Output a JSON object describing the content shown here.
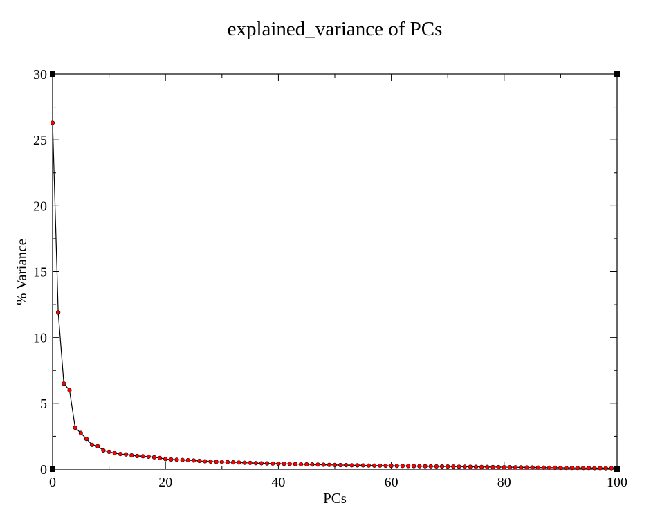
{
  "chart_data": {
    "type": "line",
    "title": "explained_variance of PCs",
    "xlabel": "PCs",
    "ylabel": "% Variance",
    "xlim": [
      0,
      100
    ],
    "ylim": [
      0,
      30
    ],
    "x_ticks": [
      {
        "value": 0,
        "label": "0"
      },
      {
        "value": 20,
        "label": "20"
      },
      {
        "value": 40,
        "label": "40"
      },
      {
        "value": 60,
        "label": "60"
      },
      {
        "value": 80,
        "label": "80"
      },
      {
        "value": 100,
        "label": "100"
      }
    ],
    "y_ticks": [
      {
        "value": 0,
        "label": "0"
      },
      {
        "value": 5,
        "label": "5"
      },
      {
        "value": 10,
        "label": "10"
      },
      {
        "value": 15,
        "label": "15"
      },
      {
        "value": 20,
        "label": "20"
      },
      {
        "value": 25,
        "label": "25"
      },
      {
        "value": 30,
        "label": "30"
      }
    ],
    "x_minor_step": 10,
    "y_minor_step": 2.5,
    "grid": false,
    "line_color": "#000000",
    "marker_color": "#ff0000",
    "x": [
      0,
      1,
      2,
      3,
      4,
      5,
      6,
      7,
      8,
      9,
      10,
      11,
      12,
      13,
      14,
      15,
      16,
      17,
      18,
      19,
      20,
      21,
      22,
      23,
      24,
      25,
      26,
      27,
      28,
      29,
      30,
      31,
      32,
      33,
      34,
      35,
      36,
      37,
      38,
      39,
      40,
      41,
      42,
      43,
      44,
      45,
      46,
      47,
      48,
      49,
      50,
      51,
      52,
      53,
      54,
      55,
      56,
      57,
      58,
      59,
      60,
      61,
      62,
      63,
      64,
      65,
      66,
      67,
      68,
      69,
      70,
      71,
      72,
      73,
      74,
      75,
      76,
      77,
      78,
      79,
      80,
      81,
      82,
      83,
      84,
      85,
      86,
      87,
      88,
      89,
      90,
      91,
      92,
      93,
      94,
      95,
      96,
      97,
      98,
      99,
      100
    ],
    "values": [
      26.3,
      11.9,
      6.5,
      6.0,
      3.15,
      2.75,
      2.3,
      1.85,
      1.75,
      1.42,
      1.32,
      1.22,
      1.15,
      1.12,
      1.05,
      1.0,
      0.98,
      0.95,
      0.9,
      0.85,
      0.77,
      0.74,
      0.72,
      0.7,
      0.68,
      0.66,
      0.63,
      0.6,
      0.58,
      0.56,
      0.55,
      0.54,
      0.52,
      0.51,
      0.49,
      0.48,
      0.46,
      0.45,
      0.44,
      0.43,
      0.42,
      0.41,
      0.4,
      0.39,
      0.38,
      0.37,
      0.36,
      0.35,
      0.34,
      0.33,
      0.32,
      0.315,
      0.31,
      0.3,
      0.295,
      0.29,
      0.28,
      0.275,
      0.27,
      0.26,
      0.255,
      0.25,
      0.245,
      0.24,
      0.235,
      0.23,
      0.225,
      0.22,
      0.215,
      0.21,
      0.205,
      0.2,
      0.195,
      0.19,
      0.185,
      0.18,
      0.175,
      0.17,
      0.165,
      0.16,
      0.155,
      0.15,
      0.145,
      0.14,
      0.135,
      0.13,
      0.125,
      0.12,
      0.115,
      0.11,
      0.105,
      0.1,
      0.097,
      0.094,
      0.091,
      0.088,
      0.085,
      0.082,
      0.079,
      0.076,
      0.073
    ]
  }
}
